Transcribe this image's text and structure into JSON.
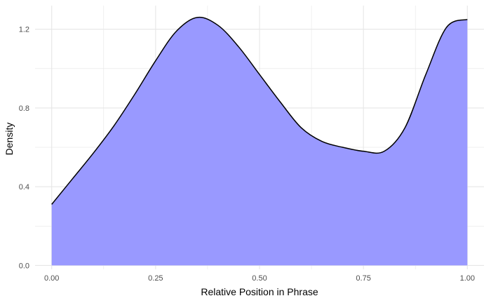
{
  "chart_data": {
    "type": "area",
    "title": "",
    "xlabel": "Relative Position in Phrase",
    "ylabel": "Density",
    "xlim": [
      -0.04,
      1.04
    ],
    "ylim": [
      -0.02,
      1.32
    ],
    "x_ticks": [
      0.0,
      0.25,
      0.5,
      0.75,
      1.0
    ],
    "x_tick_labels": [
      "0.00",
      "0.25",
      "0.50",
      "0.75",
      "1.00"
    ],
    "y_ticks": [
      0.0,
      0.4,
      0.8,
      1.2
    ],
    "y_tick_labels": [
      "0.0",
      "0.4",
      "0.8",
      "1.2"
    ],
    "grid": true,
    "legend": "none",
    "fill_color": "#9999ff",
    "line_color": "#000000",
    "grid_color": "#e6e6e6",
    "series": [
      {
        "x": [
          0.0,
          0.05,
          0.1,
          0.15,
          0.2,
          0.25,
          0.3,
          0.35,
          0.4,
          0.45,
          0.5,
          0.55,
          0.6,
          0.65,
          0.7,
          0.75,
          0.8,
          0.85,
          0.9,
          0.95,
          1.0
        ],
        "y": [
          0.31,
          0.44,
          0.57,
          0.71,
          0.87,
          1.04,
          1.19,
          1.26,
          1.22,
          1.11,
          0.97,
          0.83,
          0.7,
          0.63,
          0.6,
          0.58,
          0.58,
          0.7,
          0.97,
          1.21,
          1.25
        ]
      }
    ]
  }
}
